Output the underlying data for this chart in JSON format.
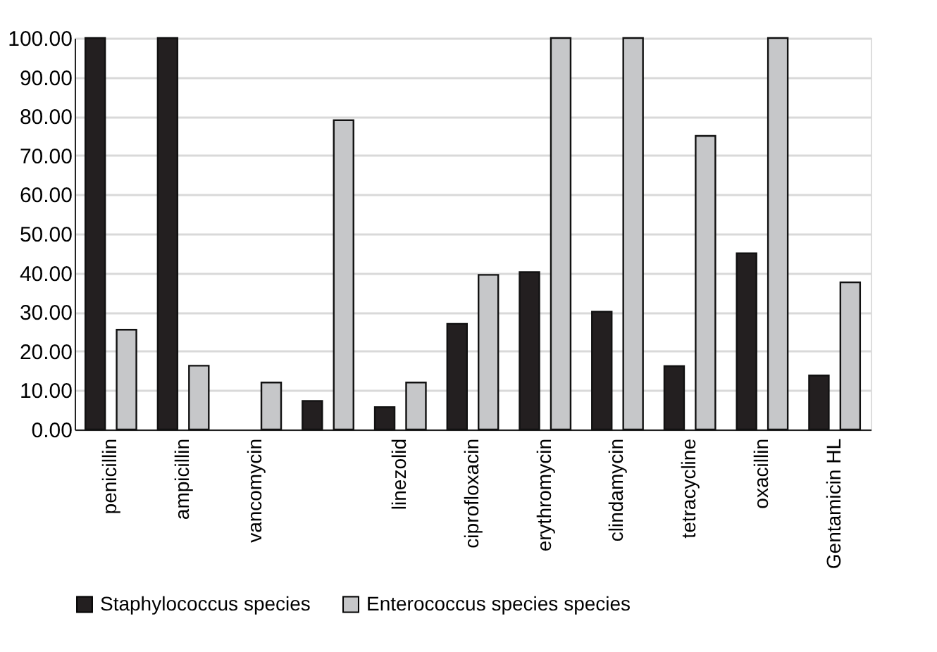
{
  "chart_data": {
    "type": "bar",
    "categories": [
      "penicillin",
      "ampicillin",
      "vancomycin",
      null,
      "linezolid",
      "ciprofloxacin",
      "erythromycin",
      "clindamycin",
      "tetracycline",
      "oxacillin",
      "Gentamicin HL"
    ],
    "series": [
      {
        "name": "Staphylococcus species",
        "color": "#231f20",
        "values": [
          100,
          100,
          null,
          7.3,
          5.7,
          27,
          40.2,
          30.1,
          16.2,
          45,
          13.8
        ]
      },
      {
        "name": "Enterococcus species species",
        "color": "#c6c7c9",
        "values": [
          25.5,
          16.3,
          12,
          79,
          12,
          39.5,
          100,
          100,
          75,
          100,
          37.6
        ]
      }
    ],
    "ylim": [
      0,
      100
    ],
    "yticks": [
      {
        "value": 0,
        "label": "0.00"
      },
      {
        "value": 10,
        "label": "10.00"
      },
      {
        "value": 20,
        "label": "20.00"
      },
      {
        "value": 30,
        "label": "30.00"
      },
      {
        "value": 40,
        "label": "40.00"
      },
      {
        "value": 50,
        "label": "50.00"
      },
      {
        "value": 60,
        "label": "60.00"
      },
      {
        "value": 70,
        "label": "70.00"
      },
      {
        "value": 80,
        "label": "80.00"
      },
      {
        "value": 90,
        "label": "90.00"
      },
      {
        "value": 100,
        "label": "100.00"
      }
    ],
    "grid": "y",
    "legend": "bottom"
  }
}
